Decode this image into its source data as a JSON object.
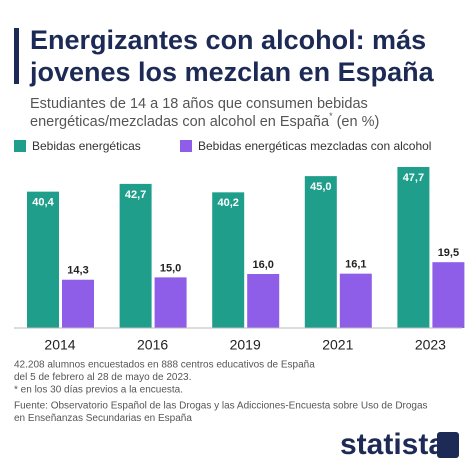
{
  "chart_data": {
    "type": "bar",
    "title": [
      "Energizantes con alcohol: más",
      "jovenes los mezclan en España"
    ],
    "subtitle": [
      "Estudiantes de 14 a 18 años que consumen bebidas",
      "energéticas/mezcladas con alcohol en España"
    ],
    "subtitle_mark": "*",
    "subtitle_unit": "(en %)",
    "categories": [
      "2014",
      "2016",
      "2019",
      "2021",
      "2023"
    ],
    "series": [
      {
        "name": "Bebidas energéticas",
        "color": "#1f9e8b",
        "values": [
          40.4,
          42.7,
          40.2,
          45.0,
          47.7
        ],
        "value_labels": [
          "40,4",
          "42,7",
          "40,2",
          "45,0",
          "47,7"
        ]
      },
      {
        "name": "Bebidas energéticas mezcladas con alcohol",
        "color": "#8f5ee8",
        "values": [
          14.3,
          15.0,
          16.0,
          16.1,
          19.5
        ],
        "value_labels": [
          "14,3",
          "15,0",
          "16,0",
          "16,1",
          "19,5"
        ]
      }
    ],
    "notes": [
      "42.208 alumnos encuestados en 888 centros educativos de España",
      "del 5 de febrero al 28 de mayo de 2023.",
      "* en los 30 días previos a la encuesta."
    ],
    "source": [
      "Fuente: Observatorio Español de las Drogas y las Adicciones-Encuesta sobre Uso de Drogas",
      "en Enseñanzas Secundarias en España"
    ],
    "logo": "statista"
  }
}
